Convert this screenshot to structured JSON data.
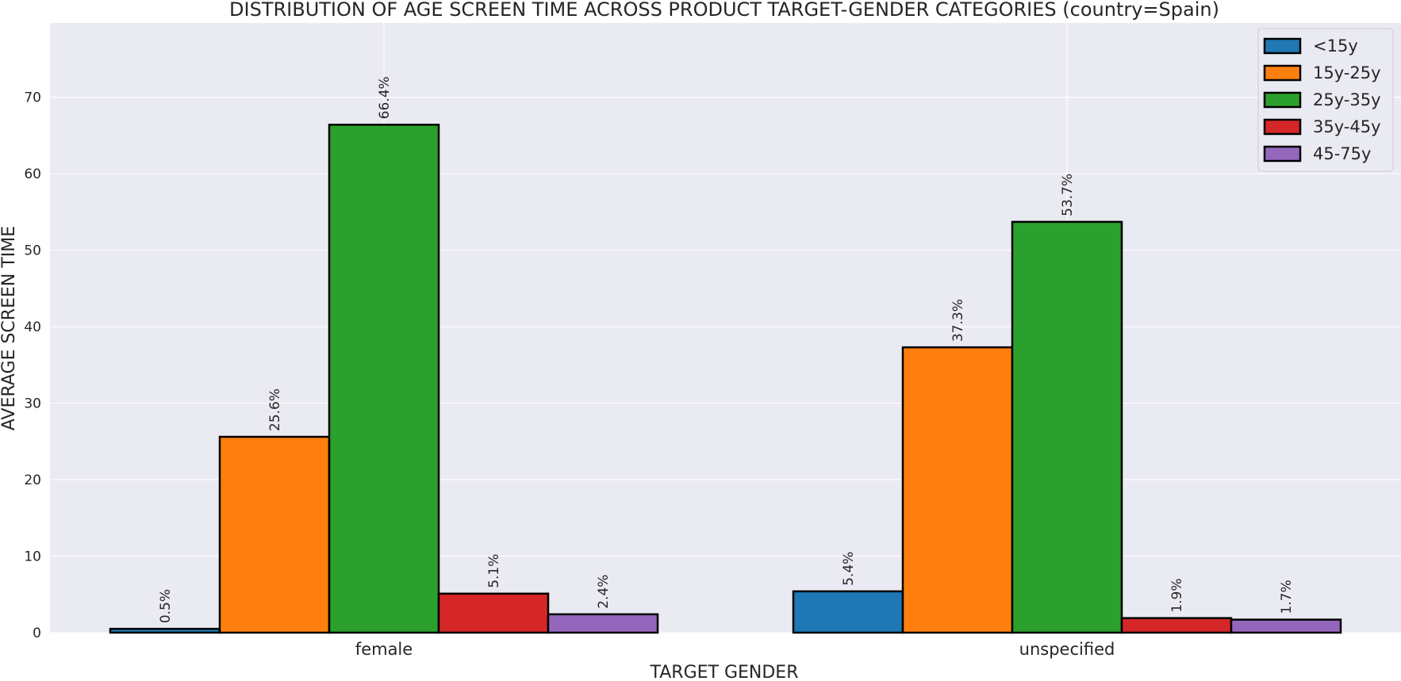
{
  "chart_data": {
    "type": "bar",
    "title": "DISTRIBUTION OF AGE SCREEN TIME ACROSS PRODUCT TARGET-GENDER CATEGORIES (country=Spain)",
    "xlabel": "TARGET GENDER",
    "ylabel": "AVERAGE SCREEN TIME",
    "categories": [
      "female",
      "unspecified"
    ],
    "series": [
      {
        "name": "<15y",
        "color": "#1f77b4",
        "values": [
          0.5,
          5.4
        ],
        "labels": [
          "0.5%",
          "5.4%"
        ]
      },
      {
        "name": "15y-25y",
        "color": "#ff7f0e",
        "values": [
          25.6,
          37.3
        ],
        "labels": [
          "25.6%",
          "37.3%"
        ]
      },
      {
        "name": "25y-35y",
        "color": "#2ca02c",
        "values": [
          66.4,
          53.7
        ],
        "labels": [
          "66.4%",
          "53.7%"
        ]
      },
      {
        "name": "35y-45y",
        "color": "#d62728",
        "values": [
          5.1,
          1.9
        ],
        "labels": [
          "5.1%",
          "1.9%"
        ]
      },
      {
        "name": "45-75y",
        "color": "#9467bd",
        "values": [
          2.4,
          1.7
        ],
        "labels": [
          "2.4%",
          "1.7%"
        ]
      }
    ],
    "ylim": [
      0,
      79.7
    ],
    "yticks": [
      0,
      10,
      20,
      30,
      40,
      50,
      60,
      70
    ],
    "grid": true,
    "legend_position": "top-right",
    "background": "#eaeaf2"
  }
}
